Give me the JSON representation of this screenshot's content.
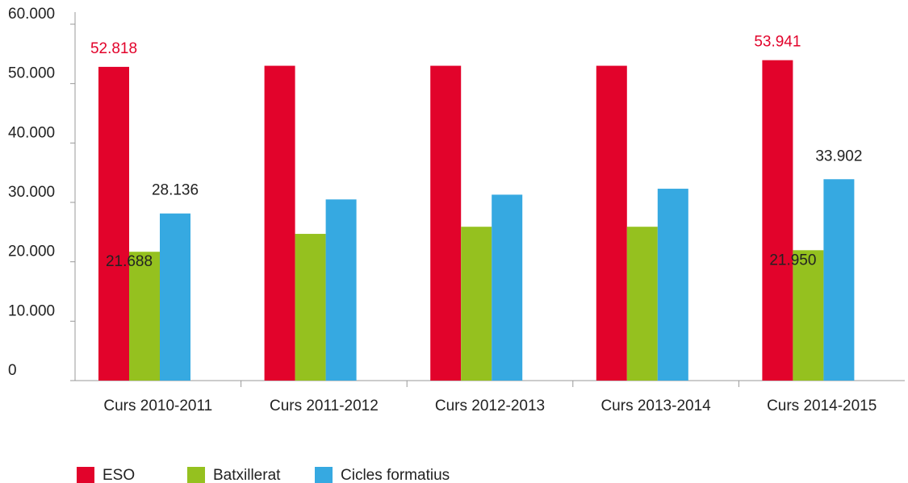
{
  "chart_data": {
    "type": "bar",
    "categories": [
      "Curs 2010-2011",
      "Curs 2011-2012",
      "Curs 2012-2013",
      "Curs 2013-2014",
      "Curs 2014-2015"
    ],
    "series": [
      {
        "name": "ESO",
        "color": "#e2032b",
        "values": [
          52818,
          53000,
          53000,
          53000,
          53941
        ],
        "value_labels": [
          "52.818",
          null,
          null,
          null,
          "53.941"
        ]
      },
      {
        "name": "Batxillerat",
        "color": "#95c11f",
        "values": [
          21688,
          24700,
          25900,
          25900,
          21950
        ],
        "value_labels": [
          "21.688",
          null,
          null,
          null,
          "21.950"
        ]
      },
      {
        "name": "Cicles formatius",
        "color": "#36a9e1",
        "values": [
          28136,
          30500,
          31300,
          32300,
          33902
        ],
        "value_labels": [
          "28.136",
          null,
          null,
          null,
          "33.902"
        ]
      }
    ],
    "ylim": [
      0,
      60000
    ],
    "yticks": [
      0,
      {
        "value": 10000,
        "label": "10.000"
      },
      {
        "value": 20000,
        "label": "20.000"
      },
      {
        "value": 30000,
        "label": "30.000"
      },
      {
        "value": 40000,
        "label": "40.000"
      },
      {
        "value": 50000,
        "label": "50.000"
      },
      {
        "value": 60000,
        "label": "60.000"
      }
    ],
    "legend": "bottom-left"
  }
}
